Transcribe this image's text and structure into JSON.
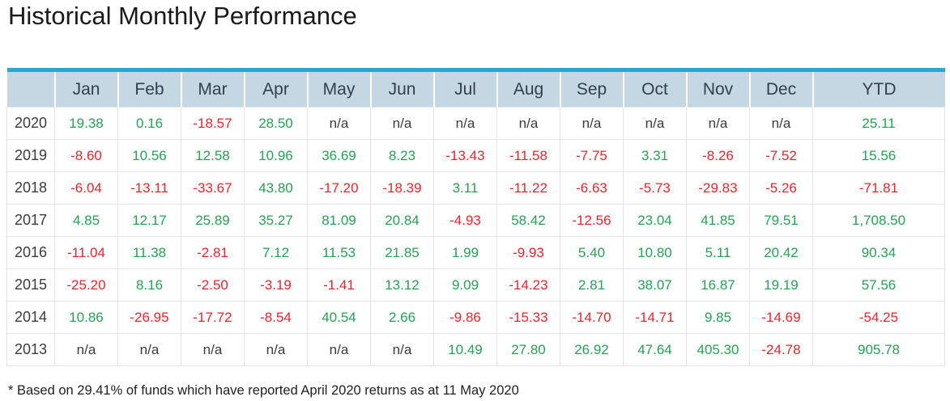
{
  "page": {
    "title": "Historical Monthly Performance",
    "footnote": "* Based on 29.41% of funds which have reported April 2020 returns as at 11 May 2020"
  },
  "colors": {
    "positive": "#26a253",
    "negative": "#e8262d",
    "neutral": "#3c3c3c",
    "header_bg": "#c5d7e2",
    "header_text": "#333f4d",
    "top_border": "#29a9d2",
    "grid_border": "#e4e4e4"
  },
  "table": {
    "columns": [
      "",
      "Jan",
      "Feb",
      "Mar",
      "Apr",
      "May",
      "Jun",
      "Jul",
      "Aug",
      "Sep",
      "Oct",
      "Nov",
      "Dec",
      "YTD"
    ],
    "rows": [
      {
        "year": "2020",
        "values": [
          "19.38",
          "0.16",
          "-18.57",
          "28.50",
          "n/a",
          "n/a",
          "n/a",
          "n/a",
          "n/a",
          "n/a",
          "n/a",
          "n/a",
          "25.11"
        ]
      },
      {
        "year": "2019",
        "values": [
          "-8.60",
          "10.56",
          "12.58",
          "10.96",
          "36.69",
          "8.23",
          "-13.43",
          "-11.58",
          "-7.75",
          "3.31",
          "-8.26",
          "-7.52",
          "15.56"
        ]
      },
      {
        "year": "2018",
        "values": [
          "-6.04",
          "-13.11",
          "-33.67",
          "43.80",
          "-17.20",
          "-18.39",
          "3.11",
          "-11.22",
          "-6.63",
          "-5.73",
          "-29.83",
          "-5.26",
          "-71.81"
        ]
      },
      {
        "year": "2017",
        "values": [
          "4.85",
          "12.17",
          "25.89",
          "35.27",
          "81.09",
          "20.84",
          "-4.93",
          "58.42",
          "-12.56",
          "23.04",
          "41.85",
          "79.51",
          "1,708.50"
        ]
      },
      {
        "year": "2016",
        "values": [
          "-11.04",
          "11.38",
          "-2.81",
          "7.12",
          "11.53",
          "21.85",
          "1.99",
          "-9.93",
          "5.40",
          "10.80",
          "5.11",
          "20.42",
          "90.34"
        ]
      },
      {
        "year": "2015",
        "values": [
          "-25.20",
          "8.16",
          "-2.50",
          "-3.19",
          "-1.41",
          "13.12",
          "9.09",
          "-14.23",
          "2.81",
          "38.07",
          "16.87",
          "19.19",
          "57.56"
        ]
      },
      {
        "year": "2014",
        "values": [
          "10.86",
          "-26.95",
          "-17.72",
          "-8.54",
          "40.54",
          "2.66",
          "-9.86",
          "-15.33",
          "-14.70",
          "-14.71",
          "9.85",
          "-14.69",
          "-54.25"
        ]
      },
      {
        "year": "2013",
        "values": [
          "n/a",
          "n/a",
          "n/a",
          "n/a",
          "n/a",
          "n/a",
          "10.49",
          "27.80",
          "26.92",
          "47.64",
          "405.30",
          "-24.78",
          "905.78"
        ]
      }
    ]
  }
}
